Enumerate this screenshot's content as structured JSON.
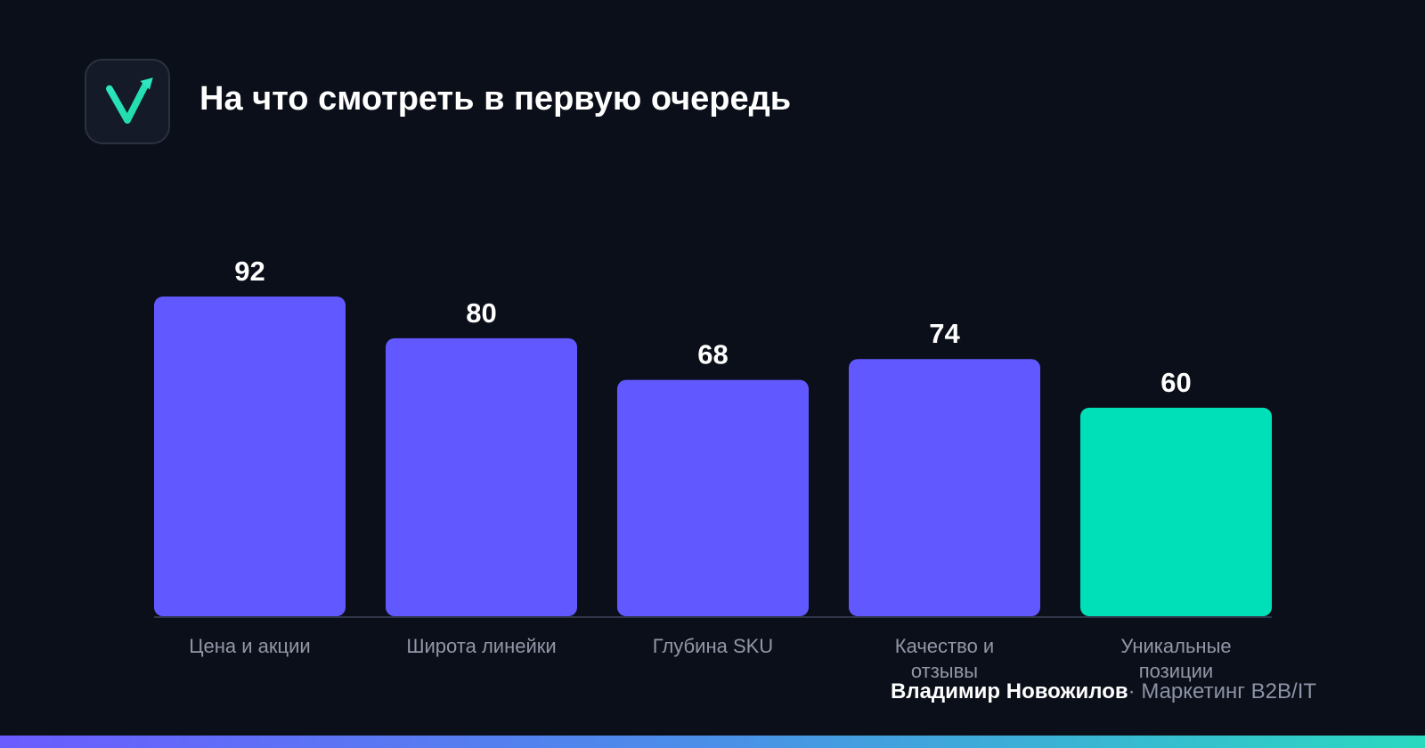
{
  "header": {
    "title": "На что смотреть в первую очередь",
    "logo_icon": "checkmark-growth-icon"
  },
  "chart_data": {
    "type": "bar",
    "title": "На что смотреть в первую очередь",
    "categories": [
      "Цена и акции",
      "Широта линейки",
      "Глубина SKU",
      "Качество и\nотзывы",
      "Уникальные\nпозиции"
    ],
    "values": [
      92,
      80,
      68,
      74,
      60
    ],
    "colors": [
      "#6159ff",
      "#6159ff",
      "#6159ff",
      "#6159ff",
      "#00e0b8"
    ],
    "ylim": [
      0,
      92
    ],
    "grid": false,
    "value_labels": true
  },
  "footer": {
    "author": "Владимир Новожилов",
    "separator": "·",
    "role": "Маркетинг B2B/IT"
  },
  "colors": {
    "background": "#0b0f19",
    "bar_primary": "#6159ff",
    "bar_highlight": "#00e0b8",
    "accent_gradient_start": "#6b5cff",
    "accent_gradient_end": "#2ad9c0"
  }
}
